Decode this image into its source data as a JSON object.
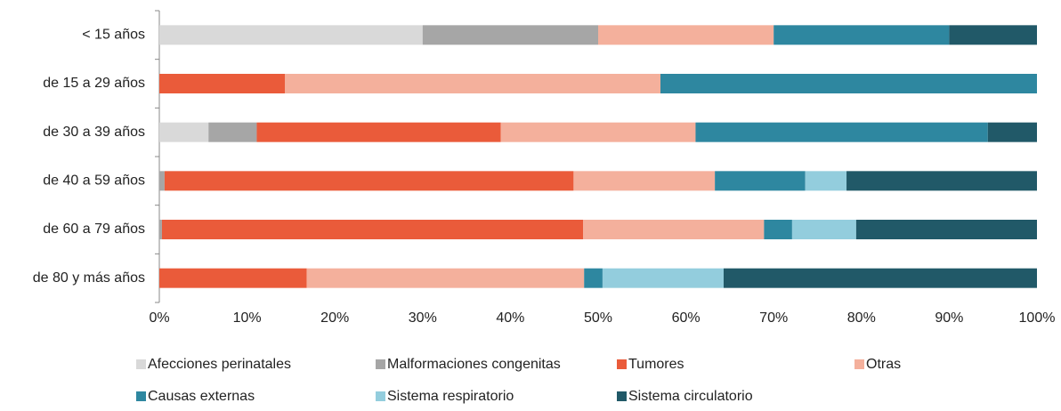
{
  "chart_data": {
    "type": "stacked-bar-horizontal",
    "categories": [
      "< 15 años",
      "de 15 a 29 años",
      "de 30 a 39 años",
      "de 40 a 59 años",
      "de 60 a 79 años",
      "de 80 y más años"
    ],
    "series": [
      {
        "name": "Afecciones perinatales",
        "color": "#d9d9d9",
        "values": [
          30,
          0,
          5.6,
          0,
          0,
          0
        ]
      },
      {
        "name": "Malformaciones congenitas",
        "color": "#a6a6a6",
        "values": [
          20,
          0,
          5.5,
          0.6,
          0.3,
          0
        ]
      },
      {
        "name": "Tumores",
        "color": "#ea5b3a",
        "values": [
          0,
          14.3,
          27.8,
          46.6,
          48.0,
          16.8
        ]
      },
      {
        "name": "Otras",
        "color": "#f4b09c",
        "values": [
          20,
          42.8,
          22.2,
          16.1,
          20.6,
          31.6
        ]
      },
      {
        "name": "Causas externas",
        "color": "#2e87a0",
        "values": [
          20,
          42.9,
          33.3,
          10.3,
          3.2,
          2.1
        ]
      },
      {
        "name": "Sistema respiratorio",
        "color": "#93cddd",
        "values": [
          0,
          0,
          0,
          4.7,
          7.3,
          13.8
        ]
      },
      {
        "name": "Sistema circulatorio",
        "color": "#215968",
        "values": [
          10,
          0,
          5.6,
          21.7,
          20.6,
          35.7
        ]
      }
    ],
    "xlim": [
      0,
      100
    ],
    "xticks": [
      {
        "value": 0,
        "label": "0%"
      },
      {
        "value": 10,
        "label": "10%"
      },
      {
        "value": 20,
        "label": "20%"
      },
      {
        "value": 30,
        "label": "30%"
      },
      {
        "value": 40,
        "label": "40%"
      },
      {
        "value": 50,
        "label": "50%"
      },
      {
        "value": 60,
        "label": "60%"
      },
      {
        "value": 70,
        "label": "70%"
      },
      {
        "value": 80,
        "label": "80%"
      },
      {
        "value": 90,
        "label": "90%"
      },
      {
        "value": 100,
        "label": "100%"
      }
    ],
    "grid": false
  }
}
